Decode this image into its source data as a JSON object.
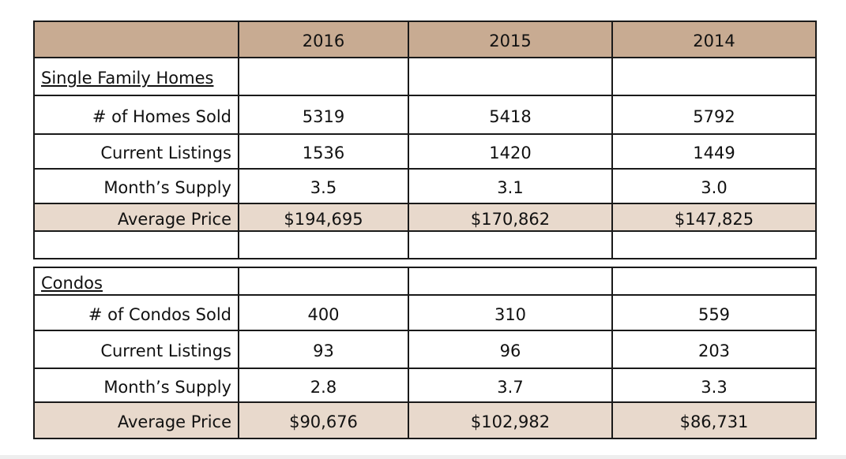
{
  "header": [
    "2016",
    "2015",
    "2014"
  ],
  "sections": [
    {
      "title": "Single Family Homes",
      "rows": [
        {
          "label": "# of Homes Sold",
          "values": [
            "5319",
            "5418",
            "5792"
          ]
        },
        {
          "label": "Current Listings",
          "values": [
            "1536",
            "1420",
            "1449"
          ]
        },
        {
          "label": "Month’s Supply",
          "values": [
            "3.5",
            "3.1",
            "3.0"
          ]
        },
        {
          "label": "Average Price",
          "values": [
            "$194,695",
            "$170,862",
            "$147,825"
          ]
        }
      ]
    },
    {
      "title": "Condos",
      "rows": [
        {
          "label": "# of Condos Sold",
          "values": [
            "400",
            "310",
            "559"
          ]
        },
        {
          "label": "Current Listings",
          "values": [
            "93",
            "96",
            "203"
          ]
        },
        {
          "label": "Month’s Supply",
          "values": [
            "2.8",
            "3.7",
            "3.3"
          ]
        },
        {
          "label": "Average Price",
          "values": [
            "$90,676",
            "$102,982",
            "$86,731"
          ]
        }
      ]
    }
  ]
}
